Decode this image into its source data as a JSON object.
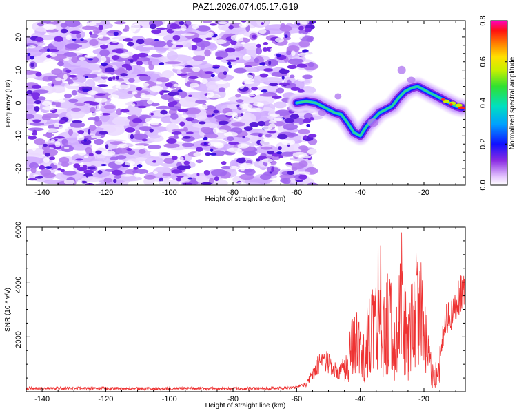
{
  "title": "PAZ1.2026.074.05.17.G19",
  "chart_data": [
    {
      "type": "heatmap",
      "title": "PAZ1.2026.074.05.17.G19",
      "xlabel": "Height of straight line (km)",
      "ylabel": "Frequency (Hz)",
      "xlim": [
        -145,
        -7
      ],
      "ylim": [
        -25,
        25
      ],
      "xticks": [
        -140,
        -120,
        -100,
        -80,
        -60,
        -40,
        -20
      ],
      "yticks": [
        -20,
        -10,
        0,
        10,
        20
      ],
      "noise_region_x": [
        -145,
        -55
      ],
      "signal_ridge": {
        "x": [
          -60,
          -57,
          -54,
          -51,
          -48,
          -46,
          -44,
          -42,
          -40,
          -38,
          -36,
          -34,
          -32,
          -30,
          -28,
          -26,
          -24,
          -22,
          -20,
          -18,
          -16,
          -14,
          -12,
          -10,
          -8
        ],
        "y": [
          0,
          0.5,
          0,
          -1.5,
          -3,
          -3.5,
          -6,
          -9,
          -10,
          -7,
          -5,
          -3,
          -2,
          -1,
          1.5,
          3.5,
          4.5,
          5,
          4,
          3,
          2,
          1,
          0,
          -1,
          -1.5
        ]
      },
      "colorbar": {
        "label": "Normalized spectral amplitude",
        "range": [
          0.0,
          0.8
        ],
        "ticks": [
          "0.0",
          "0.2",
          "0.4",
          "0.6",
          "0.8"
        ]
      }
    },
    {
      "type": "line",
      "title": "",
      "xlabel": "Height of straight line (km)",
      "ylabel": "SNR (10 * v/v)",
      "xlim": [
        -145,
        -7
      ],
      "ylim": [
        0,
        6000
      ],
      "xticks": [
        -140,
        -120,
        -100,
        -80,
        -60,
        -40,
        -20
      ],
      "yticks": [
        2000,
        4000,
        6000
      ],
      "series": [
        {
          "name": "SNR",
          "color": "#ee3333",
          "x": [
            -145,
            -130,
            -110,
            -90,
            -70,
            -60,
            -57,
            -55,
            -53,
            -51,
            -49,
            -47,
            -45,
            -43,
            -41,
            -39,
            -37,
            -35,
            -34,
            -33,
            -31,
            -29,
            -27,
            -25,
            -23,
            -21,
            -19,
            -17,
            -15,
            -13,
            -11,
            -9,
            -7
          ],
          "y": [
            120,
            130,
            110,
            120,
            110,
            150,
            300,
            650,
            1100,
            1200,
            1000,
            700,
            1000,
            2200,
            2600,
            2000,
            3200,
            4500,
            6000,
            3500,
            4000,
            2400,
            5100,
            2300,
            4700,
            4200,
            2200,
            700,
            1500,
            2800,
            3000,
            3700,
            4200
          ]
        }
      ]
    }
  ]
}
